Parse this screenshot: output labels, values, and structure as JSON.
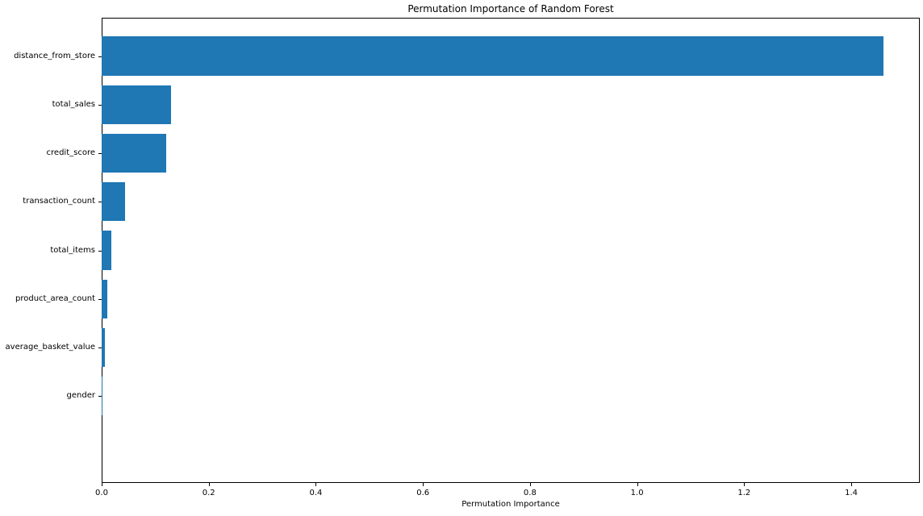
{
  "figure": {
    "title": "Permutation Importance of Random Forest"
  },
  "chart_data": {
    "type": "bar",
    "orientation": "horizontal",
    "title": "Permutation Importance of Random Forest",
    "xlabel": "Permutation Importance",
    "ylabel": "",
    "categories": [
      "distance_from_store",
      "total_sales",
      "credit_score",
      "transaction_count",
      "total_items",
      "product_area_count",
      "average_basket_value",
      "gender"
    ],
    "values": [
      1.46,
      0.13,
      0.12,
      0.044,
      0.018,
      0.011,
      0.006,
      0.001
    ],
    "x_tick_labels": [
      "0.0",
      "0.2",
      "0.4",
      "0.6",
      "0.8",
      "1.0",
      "1.2",
      "1.4"
    ],
    "xlim": [
      0,
      1.528
    ],
    "grid": false,
    "legend": null,
    "bar_color": "#1f77b4",
    "spine_color": "#000000",
    "text_color": "#000000",
    "background_color": "#ffffff"
  }
}
